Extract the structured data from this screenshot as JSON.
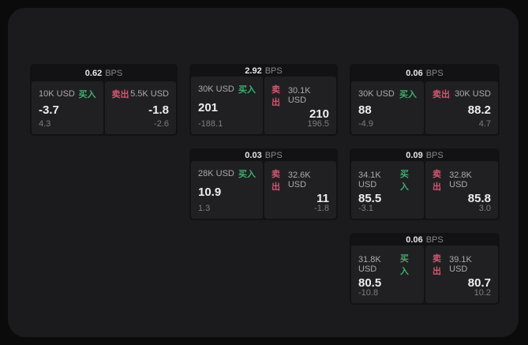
{
  "labels": {
    "bps": "BPS",
    "buy": "买入",
    "sell": "卖出"
  },
  "colors": {
    "buy": "#3fae6a",
    "sell": "#d4566f",
    "window_bg": "#1b1b1d",
    "card_bg": "#121214",
    "panel_bg": "#202023"
  },
  "cards": [
    {
      "bps": "0.62",
      "buy": {
        "amount": "10K USD",
        "value": "-3.7",
        "sub": "4.3"
      },
      "sell": {
        "amount": "5.5K USD",
        "value": "-1.8",
        "sub": "-2.6"
      }
    },
    {
      "bps": "2.92",
      "buy": {
        "amount": "30K USD",
        "value": "201",
        "sub": "-188.1"
      },
      "sell": {
        "amount": "30.1K USD",
        "value": "210",
        "sub": "196.5"
      }
    },
    {
      "bps": "0.06",
      "buy": {
        "amount": "30K USD",
        "value": "88",
        "sub": "-4.9"
      },
      "sell": {
        "amount": "30K USD",
        "value": "88.2",
        "sub": "4.7"
      }
    },
    {
      "bps": "0.03",
      "buy": {
        "amount": "28K USD",
        "value": "10.9",
        "sub": "1.3"
      },
      "sell": {
        "amount": "32.6K USD",
        "value": "11",
        "sub": "-1.8"
      }
    },
    {
      "bps": "0.09",
      "buy": {
        "amount": "34.1K USD",
        "value": "85.5",
        "sub": "-3.1"
      },
      "sell": {
        "amount": "32.8K USD",
        "value": "85.8",
        "sub": "3.0"
      }
    },
    {
      "bps": "0.06",
      "buy": {
        "amount": "31.8K USD",
        "value": "80.5",
        "sub": "-10.8"
      },
      "sell": {
        "amount": "39.1K USD",
        "value": "80.7",
        "sub": "10.2"
      }
    }
  ]
}
